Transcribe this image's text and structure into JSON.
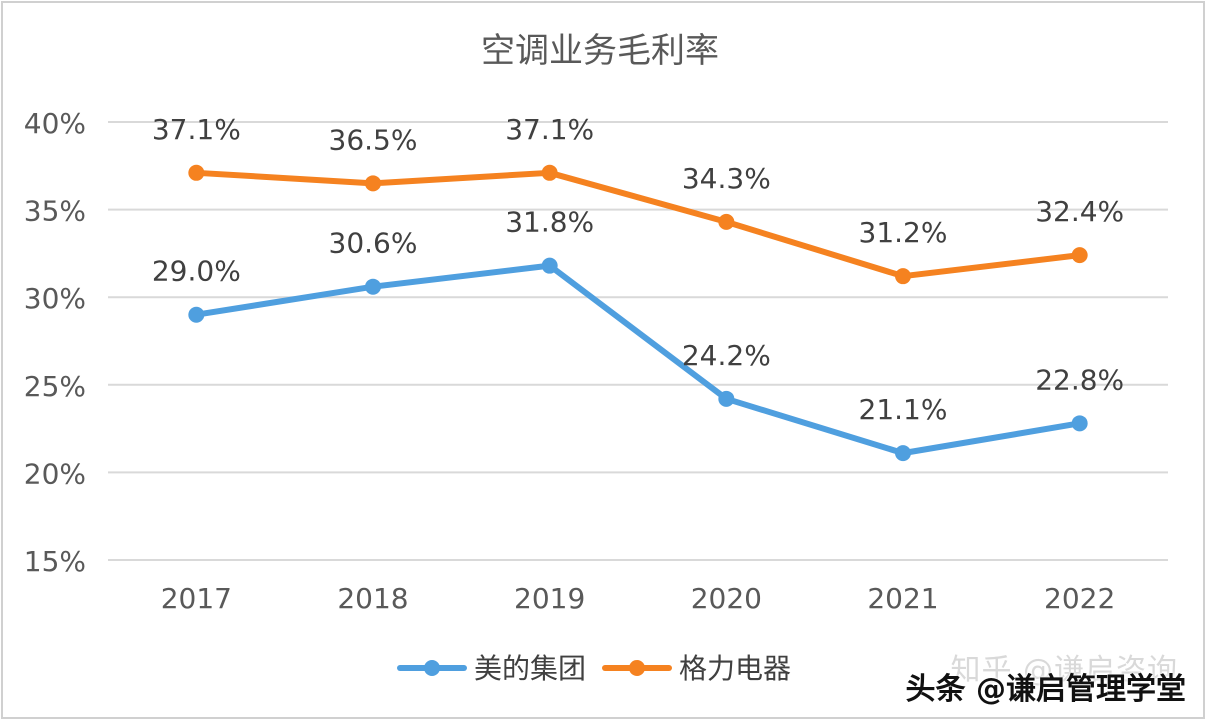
{
  "chart_data": {
    "type": "line",
    "title": "空调业务毛利率",
    "categories": [
      "2017",
      "2018",
      "2019",
      "2020",
      "2021",
      "2022"
    ],
    "ylim": [
      15,
      40
    ],
    "yticks": [
      15,
      20,
      25,
      30,
      35,
      40
    ],
    "ytick_labels": [
      "15%",
      "20%",
      "25%",
      "30%",
      "35%",
      "40%"
    ],
    "grid": true,
    "legend_position": "bottom",
    "series": [
      {
        "name": "美的集团",
        "color": "#4f9fdf",
        "values": [
          29.0,
          30.6,
          31.8,
          24.2,
          21.1,
          22.8
        ],
        "labels": [
          "29.0%",
          "30.6%",
          "31.8%",
          "24.2%",
          "21.1%",
          "22.8%"
        ]
      },
      {
        "name": "格力电器",
        "color": "#f58220",
        "values": [
          37.1,
          36.5,
          37.1,
          34.3,
          31.2,
          32.4
        ],
        "labels": [
          "37.1%",
          "36.5%",
          "37.1%",
          "34.3%",
          "31.2%",
          "32.4%"
        ]
      }
    ]
  },
  "watermark": {
    "line1": "知乎 @谦启咨询",
    "line2": "头条 @谦启管理学堂"
  }
}
